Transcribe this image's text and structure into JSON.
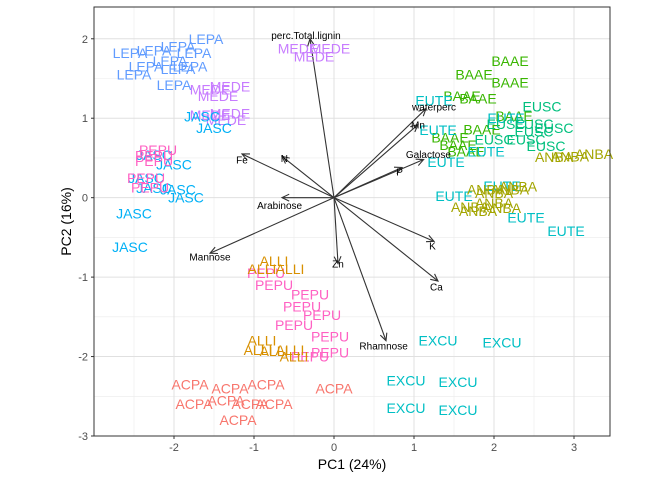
{
  "chart_data": {
    "type": "scatter",
    "subtype": "pca-biplot",
    "title": "",
    "xlabel": "PC1 (24%)",
    "ylabel": "PC2 (16%)",
    "xlim": [
      -3.0,
      3.45
    ],
    "ylim": [
      -3.0,
      2.4
    ],
    "xticks": [
      -2,
      -1,
      0,
      1,
      2,
      3
    ],
    "yticks": [
      -3,
      -2,
      -1,
      0,
      1,
      2
    ],
    "xtick_labels": [
      "-2",
      "-1",
      "0",
      "1",
      "2",
      "3"
    ],
    "ytick_labels": [
      "-3",
      "-2",
      "-1",
      "0",
      "1",
      "2"
    ],
    "grid": true,
    "legend": "none",
    "group_colors": {
      "ACPA": "#F8766D",
      "ALLI": "#D89000",
      "ANBA": "#A3A500",
      "BAAE": "#39B600",
      "EUSC": "#00BF7D",
      "EUTE": "#00BFC4",
      "EXCU": "#00BFC4",
      "JASC": "#00B0F6",
      "LEPA": "#619CFF",
      "MEDE": "#C77CFF",
      "PEPU": "#FF61C3"
    },
    "observations": [
      {
        "label": "LEPA",
        "x": -1.6,
        "y": 2.0
      },
      {
        "label": "LEPA",
        "x": -1.95,
        "y": 1.9
      },
      {
        "label": "LEPA",
        "x": -2.25,
        "y": 1.85
      },
      {
        "label": "LEPA",
        "x": -2.55,
        "y": 1.82
      },
      {
        "label": "LEPA",
        "x": -1.75,
        "y": 1.82
      },
      {
        "label": "LEPA",
        "x": -2.05,
        "y": 1.72
      },
      {
        "label": "LEPA",
        "x": -2.35,
        "y": 1.65
      },
      {
        "label": "LEPA",
        "x": -1.8,
        "y": 1.65
      },
      {
        "label": "LEPA",
        "x": -1.95,
        "y": 1.62
      },
      {
        "label": "LEPA",
        "x": -2.5,
        "y": 1.55
      },
      {
        "label": "LEPA",
        "x": -2.0,
        "y": 1.42
      },
      {
        "label": "MEDE",
        "x": -0.45,
        "y": 1.88
      },
      {
        "label": "MEDE",
        "x": -0.05,
        "y": 1.88
      },
      {
        "label": "MEDE",
        "x": -0.25,
        "y": 1.78
      },
      {
        "label": "MEDE",
        "x": -1.3,
        "y": 1.4
      },
      {
        "label": "MEDE",
        "x": -1.55,
        "y": 1.36
      },
      {
        "label": "MEDE",
        "x": -1.45,
        "y": 1.28
      },
      {
        "label": "MEDE",
        "x": -1.3,
        "y": 1.06
      },
      {
        "label": "MEDE",
        "x": -1.55,
        "y": 1.04
      },
      {
        "label": "MEDE",
        "x": -1.35,
        "y": 0.98
      },
      {
        "label": "JASC",
        "x": -1.65,
        "y": 1.02
      },
      {
        "label": "JASC",
        "x": -1.5,
        "y": 0.88
      },
      {
        "label": "JASC",
        "x": -2.25,
        "y": 0.54
      },
      {
        "label": "JASC",
        "x": -2.0,
        "y": 0.42
      },
      {
        "label": "JASC",
        "x": -2.35,
        "y": 0.25
      },
      {
        "label": "JASC",
        "x": -2.25,
        "y": 0.12
      },
      {
        "label": "JASC",
        "x": -1.95,
        "y": 0.1
      },
      {
        "label": "JASC",
        "x": -1.85,
        "y": 0.0
      },
      {
        "label": "JASC",
        "x": -2.5,
        "y": -0.2
      },
      {
        "label": "JASC",
        "x": -2.55,
        "y": -0.62
      },
      {
        "label": "PEPU",
        "x": -2.2,
        "y": 0.6
      },
      {
        "label": "PEPU",
        "x": -2.25,
        "y": 0.53
      },
      {
        "label": "PEPU",
        "x": -2.25,
        "y": 0.46
      },
      {
        "label": "PEPU",
        "x": -2.35,
        "y": 0.25
      },
      {
        "label": "PEPU",
        "x": -2.3,
        "y": 0.13
      },
      {
        "label": "PEPU",
        "x": -0.85,
        "y": -0.95
      },
      {
        "label": "PEPU",
        "x": -0.75,
        "y": -1.1
      },
      {
        "label": "PEPU",
        "x": -0.3,
        "y": -1.22
      },
      {
        "label": "PEPU",
        "x": -0.4,
        "y": -1.37
      },
      {
        "label": "PEPU",
        "x": -0.15,
        "y": -1.48
      },
      {
        "label": "PEPU",
        "x": -0.5,
        "y": -1.6
      },
      {
        "label": "PEPU",
        "x": -0.05,
        "y": -1.75
      },
      {
        "label": "PEPU",
        "x": -0.05,
        "y": -1.95
      },
      {
        "label": "PEPU",
        "x": -0.3,
        "y": -2.0
      },
      {
        "label": "ALLI",
        "x": -0.75,
        "y": -0.8
      },
      {
        "label": "ALLI",
        "x": -0.9,
        "y": -0.9
      },
      {
        "label": "ALLI",
        "x": -0.55,
        "y": -0.9
      },
      {
        "label": "ALLI",
        "x": -0.9,
        "y": -1.8
      },
      {
        "label": "ALLI",
        "x": -0.55,
        "y": -1.92
      },
      {
        "label": "ALLI",
        "x": -0.95,
        "y": -1.92
      },
      {
        "label": "ALLI",
        "x": -0.75,
        "y": -1.93
      },
      {
        "label": "ALLI",
        "x": -0.5,
        "y": -2.0
      },
      {
        "label": "ACPA",
        "x": -1.8,
        "y": -2.35
      },
      {
        "label": "ACPA",
        "x": -0.85,
        "y": -2.35
      },
      {
        "label": "ACPA",
        "x": -1.3,
        "y": -2.4
      },
      {
        "label": "ACPA",
        "x": 0.0,
        "y": -2.4
      },
      {
        "label": "ACPA",
        "x": -1.35,
        "y": -2.55
      },
      {
        "label": "ACPA",
        "x": -1.75,
        "y": -2.6
      },
      {
        "label": "ACPA",
        "x": -1.05,
        "y": -2.6
      },
      {
        "label": "ACPA",
        "x": -0.75,
        "y": -2.6
      },
      {
        "label": "ACPA",
        "x": -1.2,
        "y": -2.8
      },
      {
        "label": "EXCU",
        "x": 1.3,
        "y": -1.8
      },
      {
        "label": "EXCU",
        "x": 2.1,
        "y": -1.82
      },
      {
        "label": "EXCU",
        "x": 0.9,
        "y": -2.3
      },
      {
        "label": "EXCU",
        "x": 1.55,
        "y": -2.32
      },
      {
        "label": "EXCU",
        "x": 0.9,
        "y": -2.65
      },
      {
        "label": "EXCU",
        "x": 1.55,
        "y": -2.67
      },
      {
        "label": "BAAE",
        "x": 2.2,
        "y": 1.72
      },
      {
        "label": "BAAE",
        "x": 1.75,
        "y": 1.55
      },
      {
        "label": "BAAE",
        "x": 2.2,
        "y": 1.45
      },
      {
        "label": "BAAE",
        "x": 1.6,
        "y": 1.28
      },
      {
        "label": "BAAE",
        "x": 1.8,
        "y": 1.25
      },
      {
        "label": "BAAE",
        "x": 2.25,
        "y": 1.03
      },
      {
        "label": "BAAE",
        "x": 1.85,
        "y": 0.86
      },
      {
        "label": "BAAE",
        "x": 1.45,
        "y": 0.76
      },
      {
        "label": "BAAE",
        "x": 1.55,
        "y": 0.66
      },
      {
        "label": "BAAE",
        "x": 1.65,
        "y": 0.58
      },
      {
        "label": "EUTE",
        "x": 1.25,
        "y": 1.22
      },
      {
        "label": "EUTE",
        "x": 1.3,
        "y": 0.85
      },
      {
        "label": "EUTE",
        "x": 2.15,
        "y": 1.0
      },
      {
        "label": "EUTE",
        "x": 1.4,
        "y": 0.45
      },
      {
        "label": "EUTE",
        "x": 1.5,
        "y": 0.02
      },
      {
        "label": "EUTE",
        "x": 1.9,
        "y": 0.58
      },
      {
        "label": "EUTE",
        "x": 2.1,
        "y": 0.15
      },
      {
        "label": "EUTE",
        "x": 2.4,
        "y": -0.25
      },
      {
        "label": "EUTE",
        "x": 2.9,
        "y": -0.42
      },
      {
        "label": "EUSC",
        "x": 2.6,
        "y": 1.15
      },
      {
        "label": "EUSC",
        "x": 2.15,
        "y": 0.93
      },
      {
        "label": "EUSC",
        "x": 2.5,
        "y": 0.93
      },
      {
        "label": "EUSC",
        "x": 2.75,
        "y": 0.88
      },
      {
        "label": "EUSC",
        "x": 2.5,
        "y": 0.83
      },
      {
        "label": "EUSC",
        "x": 2.0,
        "y": 0.73
      },
      {
        "label": "EUSC",
        "x": 2.4,
        "y": 0.73
      },
      {
        "label": "EUSC",
        "x": 2.65,
        "y": 0.65
      },
      {
        "label": "ANBA",
        "x": 3.25,
        "y": 0.55
      },
      {
        "label": "ANBA",
        "x": 2.95,
        "y": 0.52
      },
      {
        "label": "ANBA",
        "x": 2.75,
        "y": 0.51
      },
      {
        "label": "ANBA",
        "x": 1.9,
        "y": 0.1
      },
      {
        "label": "ANBA",
        "x": 2.2,
        "y": 0.1
      },
      {
        "label": "ANBA",
        "x": 2.3,
        "y": 0.14
      },
      {
        "label": "ANBA",
        "x": 2.0,
        "y": 0.06
      },
      {
        "label": "ANBA",
        "x": 2.0,
        "y": -0.07
      },
      {
        "label": "ANBA",
        "x": 1.7,
        "y": -0.12
      },
      {
        "label": "ANBA",
        "x": 2.1,
        "y": -0.13
      },
      {
        "label": "ANBA",
        "x": 1.8,
        "y": -0.17
      }
    ],
    "loadings": [
      {
        "label": "perc.Total.lignin",
        "x": -0.3,
        "y": 2.0,
        "label_x": -0.35,
        "label_y": 2.05
      },
      {
        "label": "waterperc",
        "x": 1.15,
        "y": 1.12,
        "label_x": 1.25,
        "label_y": 1.15
      },
      {
        "label": "Mn",
        "x": 1.05,
        "y": 0.92,
        "label_x": 1.05,
        "label_y": 0.92
      },
      {
        "label": "Galactose",
        "x": 1.12,
        "y": 0.48,
        "label_x": 1.18,
        "label_y": 0.55
      },
      {
        "label": "P",
        "x": 0.85,
        "y": 0.38,
        "label_x": 0.82,
        "label_y": 0.33
      },
      {
        "label": "Fe",
        "x": -1.15,
        "y": 0.55,
        "label_x": -1.15,
        "label_y": 0.48
      },
      {
        "label": "N",
        "x": -0.65,
        "y": 0.52,
        "label_x": -0.62,
        "label_y": 0.5
      },
      {
        "label": "Arabinose",
        "x": -0.65,
        "y": 0.0,
        "label_x": -0.68,
        "label_y": -0.09
      },
      {
        "label": "Mannose",
        "x": -1.55,
        "y": -0.7,
        "label_x": -1.55,
        "label_y": -0.74
      },
      {
        "label": "Zn",
        "x": 0.05,
        "y": -0.83,
        "label_x": 0.05,
        "label_y": -0.83
      },
      {
        "label": "K",
        "x": 1.25,
        "y": -0.55,
        "label_x": 1.23,
        "label_y": -0.6
      },
      {
        "label": "Ca",
        "x": 1.3,
        "y": -1.05,
        "label_x": 1.28,
        "label_y": -1.12
      },
      {
        "label": "Rhamnose",
        "x": 0.65,
        "y": -1.8,
        "label_x": 0.62,
        "label_y": -1.86
      }
    ]
  }
}
